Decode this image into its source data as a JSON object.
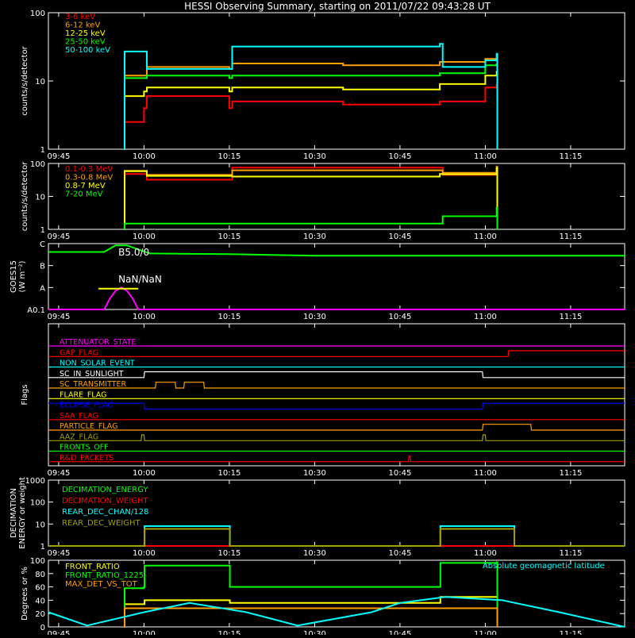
{
  "title": "HESSI Observing Summary, starting on 2011/07/22 09:43:28 UT",
  "time_ticks": [
    "09:45",
    "10:00",
    "10:15",
    "10:30",
    "10:45",
    "11:00",
    "11:15"
  ],
  "time_tick_minutes": [
    0,
    15,
    30,
    45,
    60,
    75,
    90
  ],
  "time_range_minutes": [
    -1.8,
    99.5
  ],
  "colors": {
    "red": "#ff0000",
    "orange": "#ff9f00",
    "yellow": "#ffff00",
    "green": "#00ff00",
    "cyan": "#00ffff",
    "magenta": "#ff00ff",
    "blue": "#0000ff",
    "olive": "#a0a000",
    "white": "#ffffff"
  },
  "chart_data": [
    {
      "id": "lo",
      "type": "line",
      "ylabel": "counts/s/detector",
      "yscale": "log",
      "ylim": [
        1,
        100
      ],
      "ytick_labels": [
        "1",
        "10",
        "100"
      ],
      "ytick_values": [
        1,
        10,
        100
      ],
      "series": [
        {
          "name": "3-6 keV",
          "color": "#ff0000",
          "x": [
            11.5,
            11.6,
            15,
            15.5,
            30,
            30.5,
            50,
            67,
            75,
            77
          ],
          "y": [
            1,
            2.5,
            4,
            6,
            4,
            5,
            4.5,
            5,
            8,
            9
          ]
        },
        {
          "name": "6-12 keV",
          "color": "#ff9f00",
          "x": [
            11.5,
            11.6,
            15,
            15.5,
            30,
            30.5,
            50,
            67,
            75,
            77
          ],
          "y": [
            1,
            12,
            12,
            16,
            15,
            18,
            17,
            19,
            21,
            22
          ]
        },
        {
          "name": "12-25 keV",
          "color": "#ffff00",
          "x": [
            11.5,
            11.6,
            15,
            15.5,
            30,
            30.5,
            50,
            67,
            75,
            77
          ],
          "y": [
            1,
            6,
            7,
            8,
            7,
            8,
            7.5,
            9,
            12,
            14
          ]
        },
        {
          "name": "25-50 keV",
          "color": "#00ff00",
          "x": [
            11.5,
            11.6,
            15,
            15.5,
            30,
            30.5,
            50,
            67,
            75,
            77
          ],
          "y": [
            1,
            11,
            11,
            12,
            11,
            12,
            12,
            13,
            17,
            18
          ]
        },
        {
          "name": "50-100 keV",
          "color": "#00ffff",
          "x": [
            11.5,
            11.6,
            15,
            15.5,
            30,
            30.5,
            67,
            67.5,
            75,
            77,
            77.1
          ],
          "y": [
            1,
            27,
            27,
            15,
            15,
            32,
            35,
            16,
            20,
            25,
            1
          ]
        }
      ]
    },
    {
      "id": "hi",
      "type": "line",
      "ylabel": "counts/s/detector",
      "yscale": "log",
      "ylim": [
        1,
        100
      ],
      "ytick_labels": [
        "1",
        "10",
        "100"
      ],
      "ytick_values": [
        1,
        10,
        100
      ],
      "series": [
        {
          "name": "0.1-0.3 MeV",
          "color": "#ff0000",
          "x": [
            11.5,
            11.6,
            15,
            15.5,
            30,
            30.5,
            67,
            67.5,
            77,
            77.1
          ],
          "y": [
            1,
            48,
            48,
            32,
            32,
            75,
            75,
            45,
            70,
            1
          ]
        },
        {
          "name": "0.3-0.8 MeV",
          "color": "#ff9f00",
          "x": [
            11.5,
            11.6,
            15,
            15.5,
            30,
            30.5,
            67,
            67.5,
            77,
            77.1
          ],
          "y": [
            1,
            60,
            60,
            45,
            45,
            62,
            62,
            52,
            80,
            1
          ]
        },
        {
          "name": "0.8-7 MeV",
          "color": "#ffff00",
          "x": [
            11.5,
            11.6,
            15,
            15.5,
            30,
            30.5,
            67,
            67.5,
            77,
            77.1
          ],
          "y": [
            1,
            58,
            58,
            42,
            42,
            40,
            48,
            47,
            72,
            1
          ]
        },
        {
          "name": "7-20 MeV",
          "color": "#00ff00",
          "x": [
            11.5,
            11.6,
            67,
            67.5,
            77,
            77.1
          ],
          "y": [
            1,
            1.5,
            1.5,
            2.5,
            4.5,
            1
          ]
        }
      ]
    },
    {
      "id": "goes",
      "type": "line",
      "ylabel": "GOES15",
      "ylabel2": "(W m⁻²)",
      "ytick_labels": [
        "A0.1",
        "A",
        "B",
        "C"
      ],
      "ytick_values": [
        0,
        1,
        2,
        3
      ],
      "ylim": [
        0,
        3
      ],
      "annotations": [
        {
          "text": "B5.0/0",
          "x": 10.5,
          "y": 2.45,
          "color": "#ffffff"
        },
        {
          "text": "NaN/NaN",
          "x": 10.5,
          "y": 1.22,
          "color": "#ffffff"
        }
      ],
      "series": [
        {
          "name": "",
          "color": "#00ff00",
          "x": [
            -1.8,
            8,
            10,
            12,
            16,
            30,
            45,
            60,
            75,
            99.5
          ],
          "y": [
            2.62,
            2.62,
            2.92,
            2.92,
            2.55,
            2.52,
            2.45,
            2.45,
            2.45,
            2.45
          ]
        },
        {
          "name": "",
          "color": "#ff00ff",
          "x": [
            -1.8,
            8,
            9,
            10,
            11,
            12,
            13,
            14,
            99.5
          ],
          "y": [
            0,
            0,
            0.5,
            0.85,
            1.0,
            0.85,
            0.5,
            0,
            0
          ]
        },
        {
          "name": "",
          "color": "#ffff00",
          "x": [
            7,
            14
          ],
          "y": [
            0.95,
            0.95
          ]
        }
      ]
    },
    {
      "id": "flags",
      "type": "line",
      "ylabel": "Flags",
      "rows": [
        {
          "name": "ATTENUATOR_STATE",
          "color": "#ff00ff",
          "x": [
            -1.8,
            99.5
          ],
          "y": [
            0,
            0
          ]
        },
        {
          "name": "GAP_FLAG",
          "color": "#ff0000",
          "x": [
            -1.8,
            79,
            79.1,
            99.5
          ],
          "y": [
            0,
            0,
            1,
            1
          ]
        },
        {
          "name": "NON_SOLAR_EVENT",
          "color": "#00ffff",
          "x": [
            -1.8,
            99.5
          ],
          "y": [
            0,
            0
          ]
        },
        {
          "name": "SC_IN_SUNLIGHT",
          "color": "#ffffff",
          "x": [
            -1.8,
            15,
            15.1,
            74.5,
            74.6,
            99.5
          ],
          "y": [
            0,
            0,
            1,
            1,
            0,
            0
          ]
        },
        {
          "name": "SC_TRANSMITTER",
          "color": "#ff9f00",
          "x": [
            -1.8,
            17,
            17.1,
            20.5,
            20.6,
            22,
            22.1,
            25.5,
            25.6,
            99.5
          ],
          "y": [
            0,
            0,
            1,
            1,
            0,
            0,
            1,
            1,
            0,
            0
          ]
        },
        {
          "name": "FLARE_FLAG",
          "color": "#ffff00",
          "x": [
            -1.8,
            99.5
          ],
          "y": [
            0,
            0
          ]
        },
        {
          "name": "ECLIPSE_FLAG",
          "color": "#0000ff",
          "x": [
            -1.8,
            15,
            15.1,
            74.5,
            74.6,
            99.5
          ],
          "y": [
            1,
            1,
            0,
            0,
            1,
            1
          ]
        },
        {
          "name": "SAA_FLAG",
          "color": "#ff0000",
          "x": [
            -1.8,
            99.5
          ],
          "y": [
            0,
            0
          ]
        },
        {
          "name": "PARTICLE_FLAG",
          "color": "#ff9f00",
          "x": [
            -1.8,
            74.5,
            74.6,
            83,
            83.1,
            99.5
          ],
          "y": [
            0,
            0,
            1,
            1,
            0,
            0
          ]
        },
        {
          "name": "AAZ_FLAG",
          "color": "#a0a000",
          "x": [
            -1.8,
            14.5,
            14.6,
            15,
            15.1,
            74.5,
            74.6,
            75,
            75.1,
            99.5
          ],
          "y": [
            0,
            0,
            1,
            1,
            0,
            0,
            1,
            1,
            0,
            0
          ]
        },
        {
          "name": "FRONTS_OFF",
          "color": "#00ff00",
          "x": [
            -1.8,
            99.5
          ],
          "y": [
            0,
            0
          ]
        },
        {
          "name": "R&D_PACKETS",
          "color": "#ff0000",
          "x": [
            -1.8,
            61.5,
            61.6,
            61.8,
            61.9,
            99.5
          ],
          "y": [
            0,
            0,
            1,
            1,
            0,
            0
          ]
        }
      ]
    },
    {
      "id": "dec",
      "type": "line",
      "ylabel": "DECIMATION",
      "ylabel2": "ENERGY or weight",
      "yscale": "log",
      "ylim": [
        1,
        1000
      ],
      "ytick_labels": [
        "1",
        "10",
        "100",
        "1000"
      ],
      "ytick_values": [
        1,
        10,
        100,
        1000
      ],
      "series": [
        {
          "name": "DECIMATION_ENERGY",
          "color": "#00ff00",
          "x": [
            -1.8,
            99.5
          ],
          "y": [
            1,
            1
          ]
        },
        {
          "name": "DECIMATION_WEIGHT",
          "color": "#ff0000",
          "x": [
            -1.8,
            99.5
          ],
          "y": [
            1,
            1
          ]
        },
        {
          "name": "REAR_DEC_CHAN/128",
          "color": "#00ffff",
          "x": [
            -1.8,
            15,
            15.1,
            30,
            30.1,
            67,
            67.1,
            80,
            80.1,
            99.5
          ],
          "y": [
            1,
            1,
            8,
            8,
            1,
            1,
            8,
            8,
            1,
            1
          ]
        },
        {
          "name": "REAR_DEC_WEIGHT",
          "color": "#a0a000",
          "x": [
            -1.8,
            15,
            15.1,
            30,
            30.1,
            67,
            67.1,
            80,
            80.1,
            99.5
          ],
          "y": [
            1,
            1,
            6,
            6,
            1,
            1,
            6,
            6,
            1,
            1
          ]
        }
      ]
    },
    {
      "id": "ratio",
      "type": "line",
      "ylabel": "Degrees or %",
      "ylim": [
        0,
        100
      ],
      "ytick_labels": [
        "0",
        "20",
        "40",
        "60",
        "80",
        "100"
      ],
      "ytick_values": [
        0,
        20,
        40,
        60,
        80,
        100
      ],
      "annotations": [
        {
          "text": "Absolute geomagnetic latitude",
          "x": 74.5,
          "y": 88,
          "color": "#00ffff"
        }
      ],
      "series": [
        {
          "name": "FRONT_RATIO",
          "color": "#ffff00",
          "x": [
            11.5,
            11.6,
            15,
            15.1,
            30,
            30.1,
            67,
            67.1,
            77,
            77.1
          ],
          "y": [
            0,
            34,
            34,
            40,
            40,
            36,
            36,
            45,
            45,
            0
          ]
        },
        {
          "name": "FRONT_RATIO_1225",
          "color": "#00ff00",
          "x": [
            11.5,
            11.6,
            15,
            15.1,
            30,
            30.1,
            67,
            67.1,
            77,
            77.1
          ],
          "y": [
            0,
            58,
            60,
            92,
            92,
            60,
            60,
            96,
            97,
            0
          ]
        },
        {
          "name": "MAX_DET_VS_TOT",
          "color": "#ff9f00",
          "x": [
            11.5,
            11.6,
            77,
            77.1
          ],
          "y": [
            0,
            28,
            28,
            0
          ]
        },
        {
          "name": "",
          "color": "#00ffff",
          "x": [
            -1.8,
            5,
            15,
            23,
            33,
            42,
            55,
            60,
            68,
            78,
            88,
            99.5
          ],
          "y": [
            22,
            2,
            22,
            36,
            22,
            2,
            22,
            36,
            45,
            40,
            22,
            0
          ]
        }
      ]
    }
  ]
}
